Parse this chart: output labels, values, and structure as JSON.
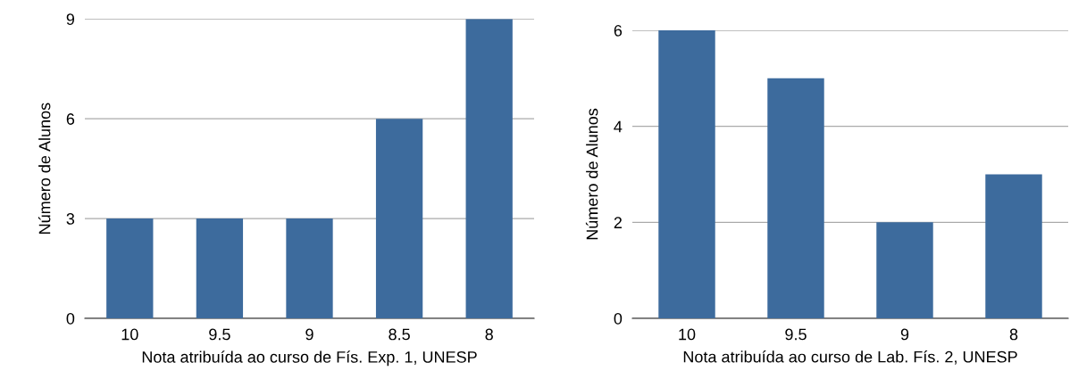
{
  "chart_data": [
    {
      "type": "bar",
      "categories": [
        "10",
        "9.5",
        "9",
        "8.5",
        "8"
      ],
      "values": [
        3,
        3,
        3,
        6,
        9
      ],
      "color": "#3d6b9d",
      "xlabel": "Nota atribuída ao curso de Fís. Exp. 1, UNESP",
      "ylabel": "Número de Alunos",
      "ylim": [
        0,
        9
      ],
      "yticks": [
        0,
        3,
        6,
        9
      ],
      "grid": "y"
    },
    {
      "type": "bar",
      "categories": [
        "10",
        "9.5",
        "9",
        "8"
      ],
      "values": [
        6,
        5,
        2,
        3
      ],
      "color": "#3d6b9d",
      "xlabel": "Nota atribuída ao curso de Lab. Fís. 2, UNESP",
      "ylabel": "Número de Alunos",
      "ylim": [
        0,
        6
      ],
      "yticks": [
        0,
        2,
        4,
        6
      ],
      "grid": "y"
    }
  ]
}
